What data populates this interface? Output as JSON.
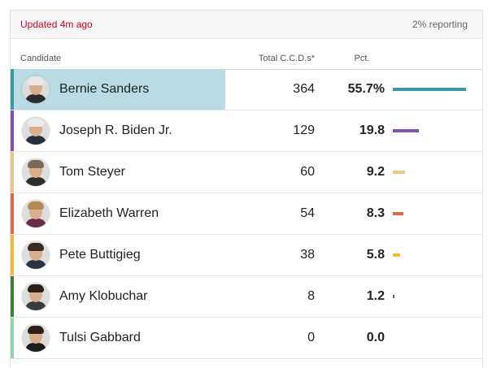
{
  "header": {
    "updated": "Updated 4m ago",
    "reporting": "2% reporting"
  },
  "columns": {
    "candidate": "Candidate",
    "votes": "Total C.C.D.s*",
    "pct": "Pct."
  },
  "colors": {
    "highlight_row": "#b9dbe4",
    "updated_text": "#d0021b"
  },
  "candidates": [
    {
      "name": "Bernie Sanders",
      "votes": "364",
      "pct": "55.7%",
      "pct_value": 55.7,
      "color": "#3c97a5",
      "hair": "#e8e8e8",
      "suit": "#2b2b2b",
      "highlighted": true
    },
    {
      "name": "Joseph R. Biden Jr.",
      "votes": "129",
      "pct": "19.8",
      "pct_value": 19.8,
      "color": "#8750b0",
      "hair": "#ececec",
      "suit": "#27303d",
      "highlighted": false
    },
    {
      "name": "Tom Steyer",
      "votes": "60",
      "pct": "9.2",
      "pct_value": 9.2,
      "color": "#e8c88f",
      "hair": "#7a6a5a",
      "suit": "#2d2d2d",
      "highlighted": false
    },
    {
      "name": "Elizabeth Warren",
      "votes": "54",
      "pct": "8.3",
      "pct_value": 8.3,
      "color": "#e0694b",
      "hair": "#b58a52",
      "suit": "#6a2a4a",
      "highlighted": false
    },
    {
      "name": "Pete Buttigieg",
      "votes": "38",
      "pct": "5.8",
      "pct_value": 5.8,
      "color": "#f4b63b",
      "hair": "#3a2a1f",
      "suit": "#2a3344",
      "highlighted": false
    },
    {
      "name": "Amy Klobuchar",
      "votes": "8",
      "pct": "1.2",
      "pct_value": 1.2,
      "color": "#3f7d3a",
      "hair": "#2a1f19",
      "suit": "#3b3b3b",
      "highlighted": false
    },
    {
      "name": "Tulsi Gabbard",
      "votes": "0",
      "pct": "0.0",
      "pct_value": 0.0,
      "color": "#8fd6ad",
      "hair": "#2e2019",
      "suit": "#1e1e1e",
      "highlighted": false
    }
  ]
}
